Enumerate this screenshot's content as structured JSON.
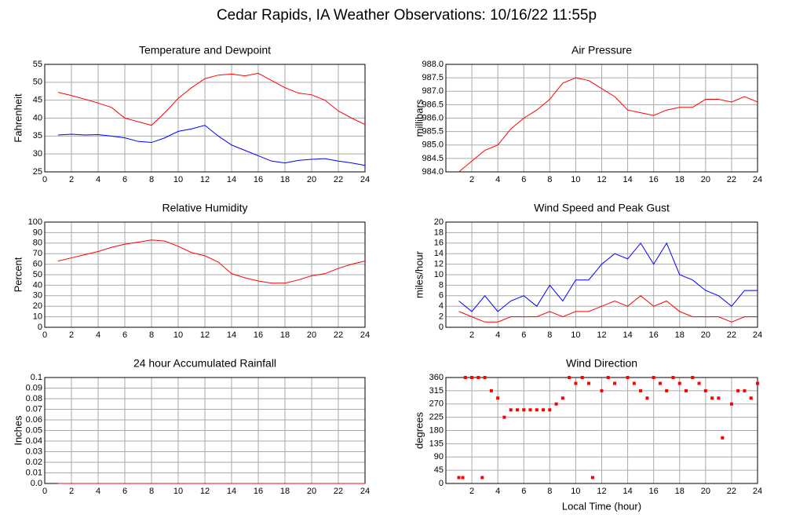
{
  "title": "Cedar Rapids, IA Weather Observations: 10/16/22 11:55p",
  "chart_data": [
    {
      "type": "line",
      "title": "Temperature and Dewpoint",
      "ylabel": "Fahrenheit",
      "x": [
        1,
        2,
        3,
        4,
        5,
        6,
        7,
        8,
        9,
        10,
        11,
        12,
        13,
        14,
        15,
        16,
        17,
        18,
        19,
        20,
        21,
        22,
        23,
        24
      ],
      "series": [
        {
          "color": "#ff0000",
          "values": [
            47.2,
            46.3,
            45.3,
            44.2,
            43,
            40,
            39,
            38,
            41.5,
            45.5,
            48.5,
            51,
            52,
            52.3,
            51.8,
            52.5,
            50.5,
            48.5,
            47,
            46.5,
            45,
            42,
            40,
            38.2
          ]
        },
        {
          "color": "#0000ff",
          "values": [
            35.3,
            35.5,
            35.3,
            35.4,
            35,
            34.5,
            33.5,
            33.2,
            34.5,
            36.3,
            37,
            38,
            35,
            32.5,
            31,
            29.5,
            28,
            27.5,
            28.2,
            28.5,
            28.7,
            28,
            27.5,
            26.8
          ]
        }
      ],
      "xlim": [
        0,
        24
      ],
      "xticks": [
        0,
        2,
        4,
        6,
        8,
        10,
        12,
        14,
        16,
        18,
        20,
        22,
        24
      ],
      "ylim": [
        25,
        55
      ],
      "yticks": [
        25,
        30,
        35,
        40,
        45,
        50,
        55
      ],
      "grid": true
    },
    {
      "type": "line",
      "title": "Air Pressure",
      "ylabel": "millibars",
      "x": [
        1,
        2,
        3,
        4,
        5,
        6,
        7,
        8,
        9,
        10,
        11,
        12,
        13,
        14,
        15,
        16,
        17,
        18,
        19,
        20,
        21,
        22,
        23,
        24
      ],
      "series": [
        {
          "color": "#ff0000",
          "values": [
            984.0,
            984.4,
            984.8,
            985.0,
            985.6,
            986.0,
            986.3,
            986.7,
            987.3,
            987.5,
            987.4,
            987.1,
            986.8,
            986.3,
            986.2,
            986.1,
            986.3,
            986.4,
            986.4,
            986.7,
            986.7,
            986.6,
            986.8,
            986.6
          ]
        }
      ],
      "xlim": [
        0,
        24
      ],
      "xticks": [
        2,
        4,
        6,
        8,
        10,
        12,
        14,
        16,
        18,
        20,
        22,
        24
      ],
      "ylim": [
        984,
        988
      ],
      "yticks": [
        {
          "value": 984,
          "label": "984.0"
        },
        984.5,
        {
          "value": 985,
          "label": "985.0"
        },
        985.5,
        {
          "value": 986,
          "label": "986.0"
        },
        986.5,
        {
          "value": 987,
          "label": "987.0"
        },
        987.5,
        {
          "value": 988,
          "label": "988.0"
        }
      ],
      "grid": true
    },
    {
      "type": "line",
      "title": "Relative Humidity",
      "ylabel": "Percent",
      "x": [
        1,
        2,
        3,
        4,
        5,
        6,
        7,
        8,
        9,
        10,
        11,
        12,
        13,
        14,
        15,
        16,
        17,
        18,
        19,
        20,
        21,
        22,
        23,
        24
      ],
      "series": [
        {
          "color": "#ff0000",
          "values": [
            63,
            66,
            69,
            72,
            76,
            79,
            81,
            83,
            82,
            77,
            71,
            68,
            62,
            51,
            47,
            44,
            42,
            42,
            45,
            49,
            51,
            56,
            60,
            63
          ]
        }
      ],
      "xlim": [
        0,
        24
      ],
      "xticks": [
        0,
        2,
        4,
        6,
        8,
        10,
        12,
        14,
        16,
        18,
        20,
        22,
        24
      ],
      "ylim": [
        0,
        100
      ],
      "yticks": [
        0,
        10,
        20,
        30,
        40,
        50,
        60,
        70,
        80,
        90,
        100
      ],
      "grid": true
    },
    {
      "type": "line",
      "title": "Wind Speed and Peak Gust",
      "ylabel": "miles/hour",
      "x": [
        1,
        2,
        3,
        4,
        5,
        6,
        7,
        8,
        9,
        10,
        11,
        12,
        13,
        14,
        15,
        16,
        17,
        18,
        19,
        20,
        21,
        22,
        23,
        24
      ],
      "series": [
        {
          "color": "#0000ff",
          "values": [
            5,
            3,
            6,
            3,
            5,
            6,
            4,
            8,
            5,
            9,
            9,
            12,
            14,
            13,
            16,
            12,
            16,
            10,
            9,
            7,
            6,
            4,
            7,
            7
          ]
        },
        {
          "color": "#ff0000",
          "values": [
            3,
            2,
            1,
            1,
            2,
            2,
            2,
            3,
            2,
            3,
            3,
            4,
            5,
            4,
            6,
            4,
            5,
            3,
            2,
            2,
            2,
            1,
            2,
            2
          ]
        }
      ],
      "xlim": [
        0,
        24
      ],
      "xticks": [
        2,
        4,
        6,
        8,
        10,
        12,
        14,
        16,
        18,
        20,
        22,
        24
      ],
      "ylim": [
        0,
        20
      ],
      "yticks": [
        0,
        2,
        4,
        6,
        8,
        10,
        12,
        14,
        16,
        18,
        20
      ],
      "grid": true
    },
    {
      "type": "line",
      "title": "24 hour Accumulated Rainfall",
      "ylabel": "Inches",
      "x": [
        1,
        24
      ],
      "series": [
        {
          "color": "#ff0000",
          "values": [
            0,
            0
          ]
        }
      ],
      "xlim": [
        0,
        24
      ],
      "xticks": [
        0,
        2,
        4,
        6,
        8,
        10,
        12,
        14,
        16,
        18,
        20,
        22,
        24
      ],
      "ylim": [
        0,
        0.1
      ],
      "yticks": [
        {
          "value": 0,
          "label": "0.0"
        },
        0.01,
        0.02,
        0.03,
        0.04,
        0.05,
        0.06,
        0.07,
        0.08,
        0.09,
        0.1
      ],
      "grid": true
    },
    {
      "type": "scatter",
      "title": "Wind Direction",
      "ylabel": "degrees",
      "xlabel": "Local Time (hour)",
      "x": [
        1,
        1.3,
        1.5,
        2,
        2.5,
        2.8,
        3,
        3.5,
        4,
        4.5,
        5,
        5.5,
        6,
        6.5,
        7,
        7.5,
        8,
        8.5,
        9,
        9.5,
        10,
        10.5,
        11,
        11.3,
        12,
        12.5,
        13,
        14,
        14.5,
        15,
        15.5,
        16,
        16.5,
        17,
        17.5,
        18,
        18.5,
        19,
        19.5,
        20,
        20.5,
        21,
        21.3,
        22,
        22.5,
        23,
        23.5,
        24
      ],
      "series": [
        {
          "color": "#ff0000",
          "values": [
            20,
            20,
            360,
            360,
            360,
            20,
            360,
            315,
            290,
            225,
            250,
            250,
            250,
            250,
            250,
            250,
            250,
            270,
            290,
            360,
            340,
            360,
            340,
            20,
            315,
            360,
            340,
            360,
            340,
            315,
            290,
            360,
            340,
            315,
            360,
            340,
            315,
            360,
            340,
            315,
            290,
            290,
            155,
            270,
            315,
            315,
            290,
            340
          ]
        }
      ],
      "xlim": [
        0,
        24
      ],
      "xticks": [
        2,
        4,
        6,
        8,
        10,
        12,
        14,
        16,
        18,
        20,
        22,
        24
      ],
      "ylim": [
        0,
        360
      ],
      "yticks": [
        0,
        45,
        90,
        135,
        180,
        225,
        270,
        315,
        360
      ],
      "grid": true
    }
  ]
}
